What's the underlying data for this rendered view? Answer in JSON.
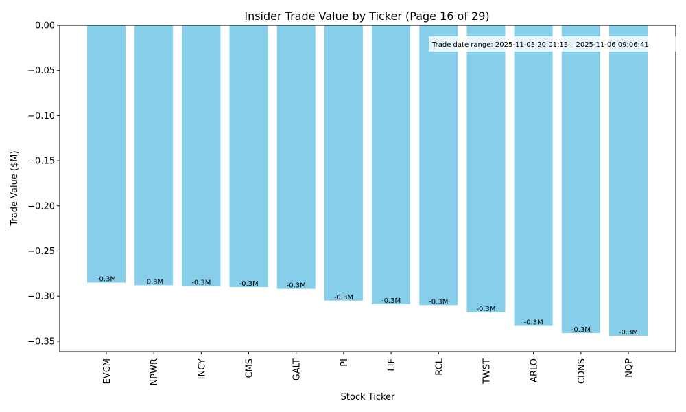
{
  "chart_data": {
    "type": "bar",
    "title": "Insider Trade Value by Ticker (Page 16 of 29)",
    "xlabel": "Stock Ticker",
    "ylabel": "Trade Value ($M)",
    "categories": [
      "EVCM",
      "NPWR",
      "INCY",
      "CMS",
      "GALT",
      "PI",
      "LIF",
      "RCL",
      "TWST",
      "ARLO",
      "CDNS",
      "NQP"
    ],
    "values": [
      -0.285,
      -0.288,
      -0.289,
      -0.29,
      -0.292,
      -0.305,
      -0.309,
      -0.31,
      -0.318,
      -0.333,
      -0.341,
      -0.344
    ],
    "bar_labels": [
      "-0.3M",
      "-0.3M",
      "-0.3M",
      "-0.3M",
      "-0.3M",
      "-0.3M",
      "-0.3M",
      "-0.3M",
      "-0.3M",
      "-0.3M",
      "-0.3M",
      "-0.3M"
    ],
    "ylim": [
      -0.3615,
      0.0
    ],
    "yticks": [
      0.0,
      -0.05,
      -0.1,
      -0.15,
      -0.2,
      -0.25,
      -0.3,
      -0.35
    ],
    "ytick_labels": [
      "0.00",
      "−0.05",
      "−0.10",
      "−0.15",
      "−0.20",
      "−0.25",
      "−0.30",
      "−0.35"
    ],
    "bar_color": "#87CEEB",
    "annotation": "Trade date range: 2025-11-03 20:01:13 – 2025-11-06 09:06:41",
    "legend": false,
    "grid": false
  }
}
